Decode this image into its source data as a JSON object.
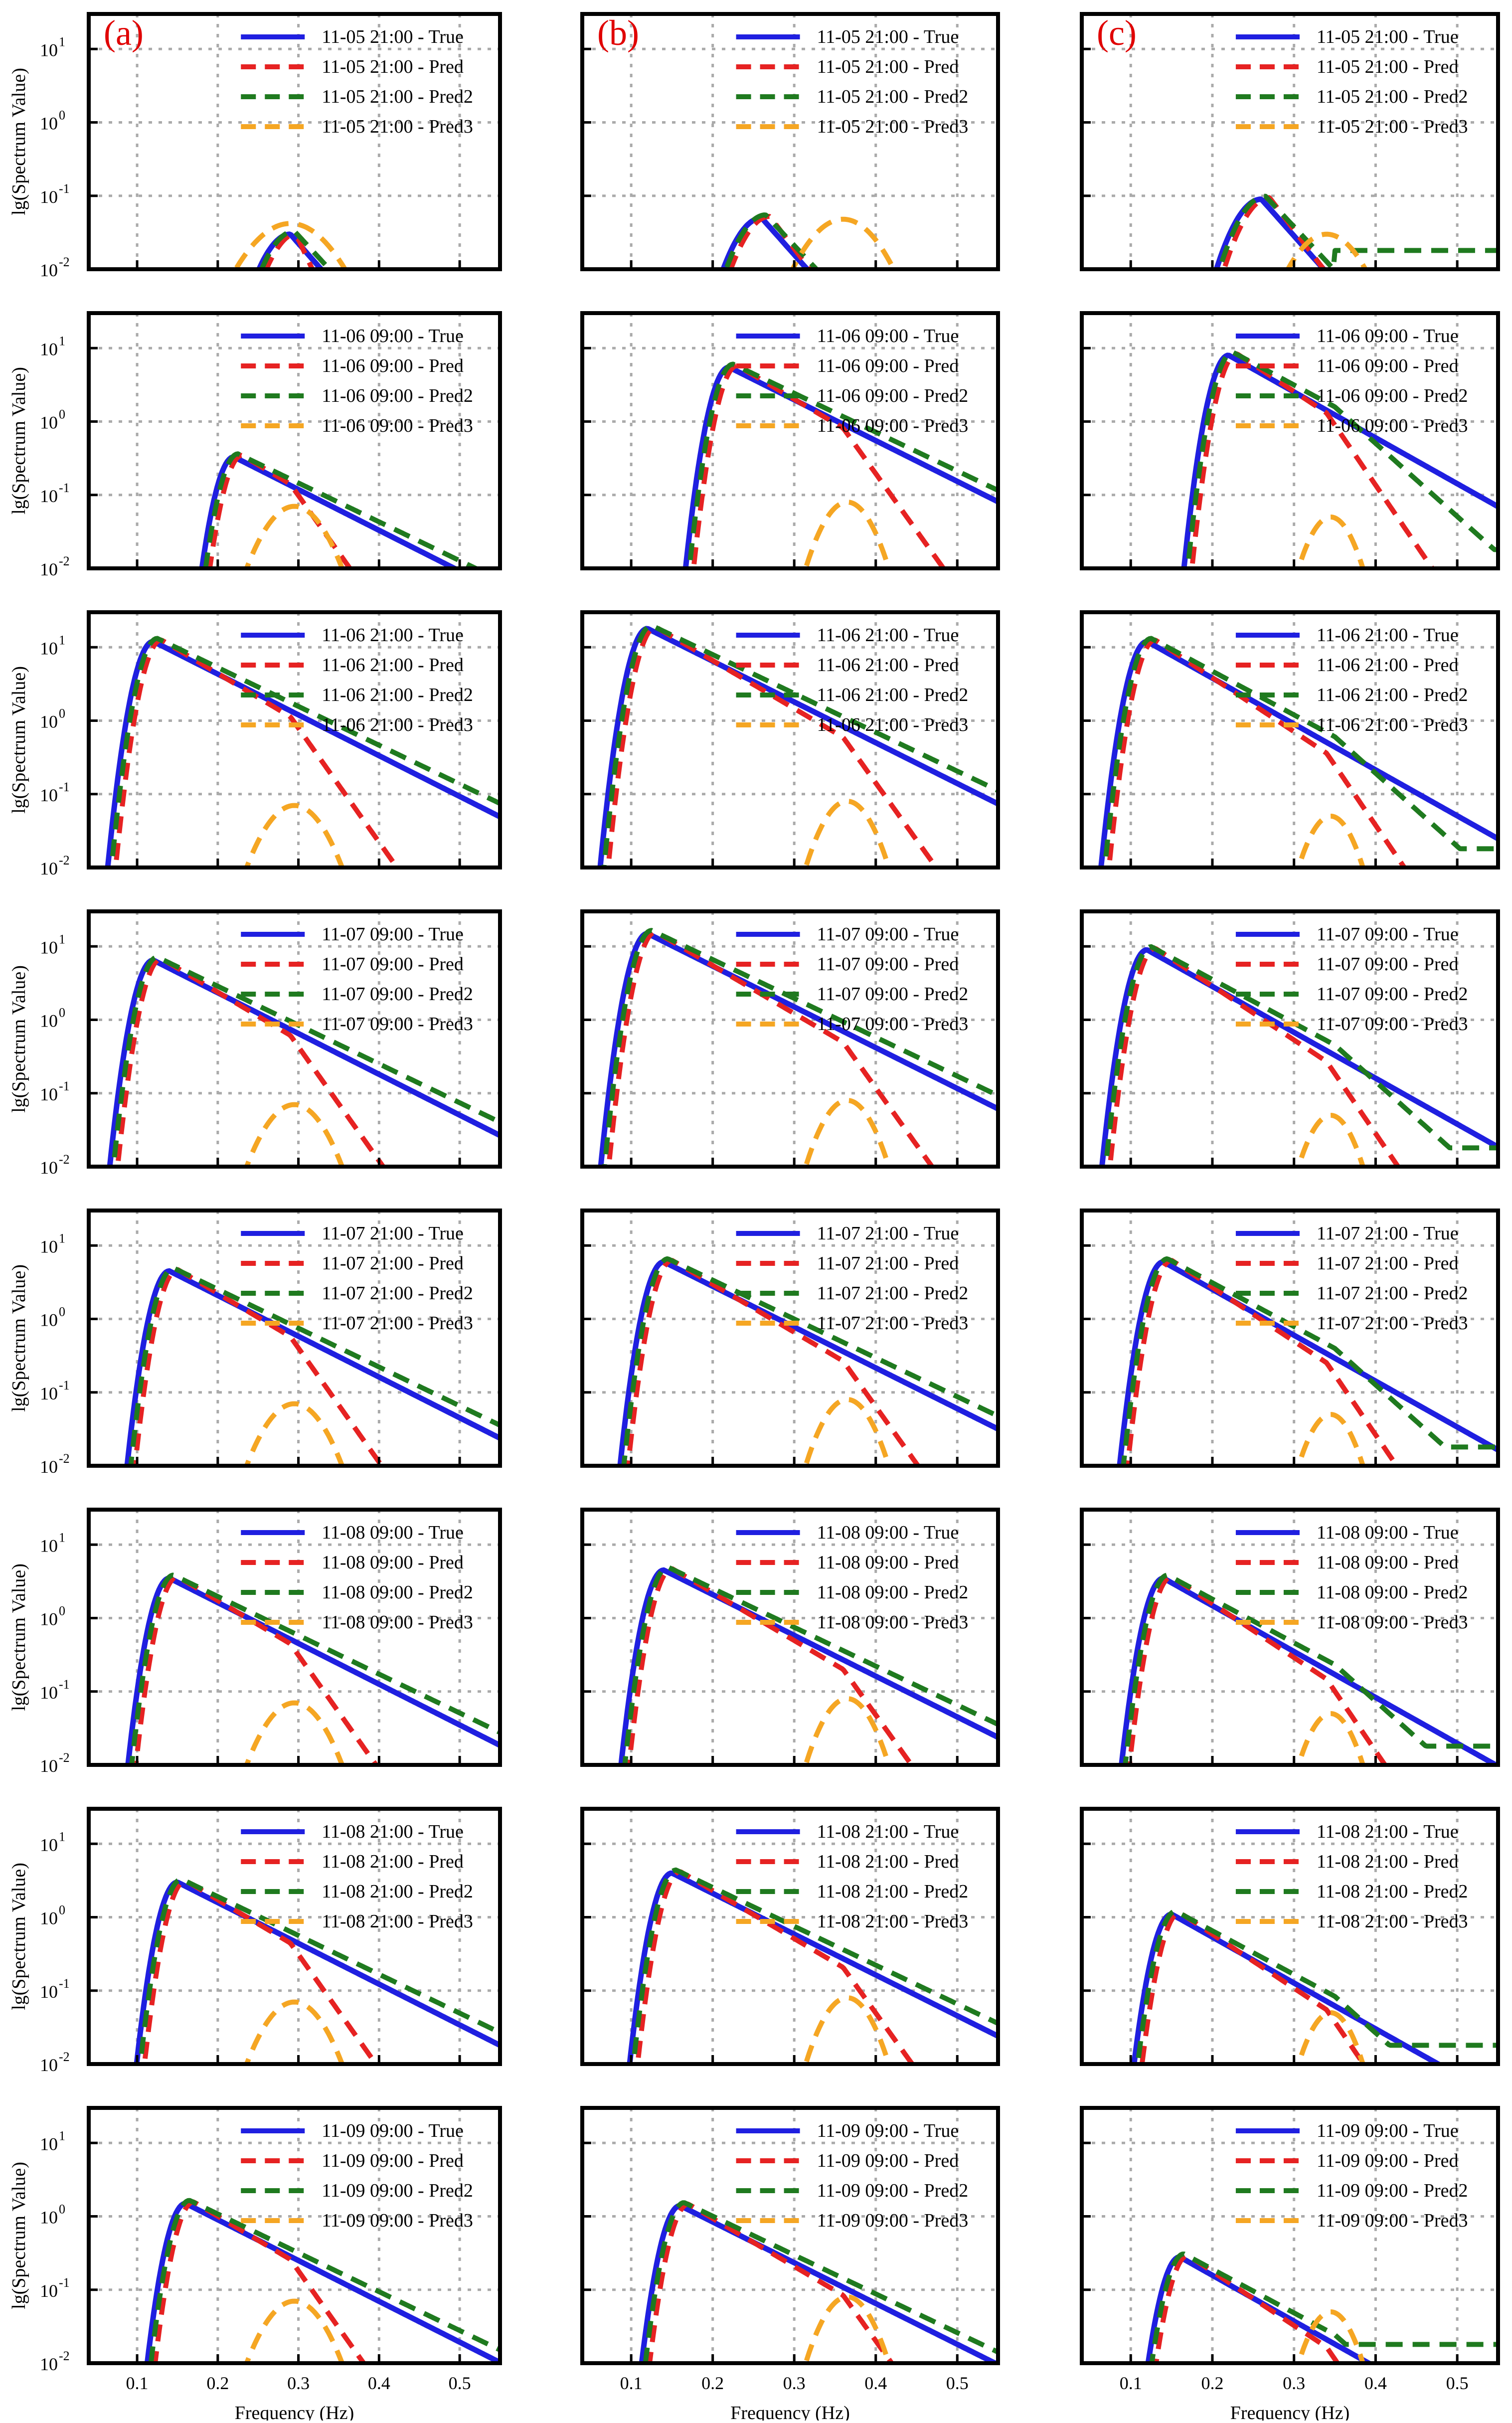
{
  "figure": {
    "columns": [
      {
        "label": "(a)",
        "center": 0.29,
        "spread": 0.03,
        "pred3_amp": 0.07
      },
      {
        "label": "(b)",
        "center": 0.36,
        "spread": 0.025,
        "pred3_amp": 0.08
      },
      {
        "label": "(c)",
        "center": 0.34,
        "spread": 0.022,
        "pred3_amp": 0.05
      }
    ],
    "rows": [
      "11-05 21:00",
      "11-06 09:00",
      "11-06 21:00",
      "11-07 09:00",
      "11-07 21:00",
      "11-08 09:00",
      "11-08 21:00",
      "11-09 09:00"
    ],
    "row_peaks": [
      [
        0.03,
        0.05,
        0.09
      ],
      [
        0.33,
        5.5,
        8.0
      ],
      [
        12.0,
        18.0,
        12.0
      ],
      [
        6.5,
        15.0,
        9.0
      ],
      [
        4.5,
        6.0,
        6.0
      ],
      [
        3.5,
        4.5,
        3.5
      ],
      [
        3.0,
        4.0,
        1.1
      ],
      [
        1.5,
        1.4,
        0.28
      ]
    ],
    "row_peak_freq": [
      0.27,
      0.22,
      0.12,
      0.12,
      0.14,
      0.14,
      0.15,
      0.16
    ],
    "series_styles": {
      "True": {
        "color": "#1f1fe0",
        "dashed": false
      },
      "Pred": {
        "color": "#e62222",
        "dashed": true
      },
      "Pred2": {
        "color": "#1f7a1f",
        "dashed": true
      },
      "Pred3": {
        "color": "#f5a623",
        "dashed": true
      }
    },
    "legend_order": [
      "True",
      "Pred",
      "Pred2",
      "Pred3"
    ],
    "ylabel": "lg(Spectrum Value)",
    "xlabel": "Frequency (Hz)",
    "yticks": [
      "10",
      "10",
      "10",
      "10"
    ],
    "ytick_exps": [
      "-2",
      "-1",
      "0",
      "1"
    ],
    "xticks": [
      "0.1",
      "0.2",
      "0.3",
      "0.4",
      "0.5"
    ]
  },
  "chart_data": {
    "type": "line",
    "title": "",
    "xlabel": "Frequency (Hz)",
    "ylabel": "lg(Spectrum Value)",
    "xlim": [
      0.04,
      0.55
    ],
    "ylim": [
      0.01,
      30
    ],
    "yscale": "log",
    "grid": true,
    "legend": "top-right",
    "subplot_grid": [
      8,
      3
    ],
    "column_labels": [
      "(a)",
      "(b)",
      "(c)"
    ],
    "series_names": [
      "True",
      "Pred",
      "Pred2",
      "Pred3"
    ]
  }
}
